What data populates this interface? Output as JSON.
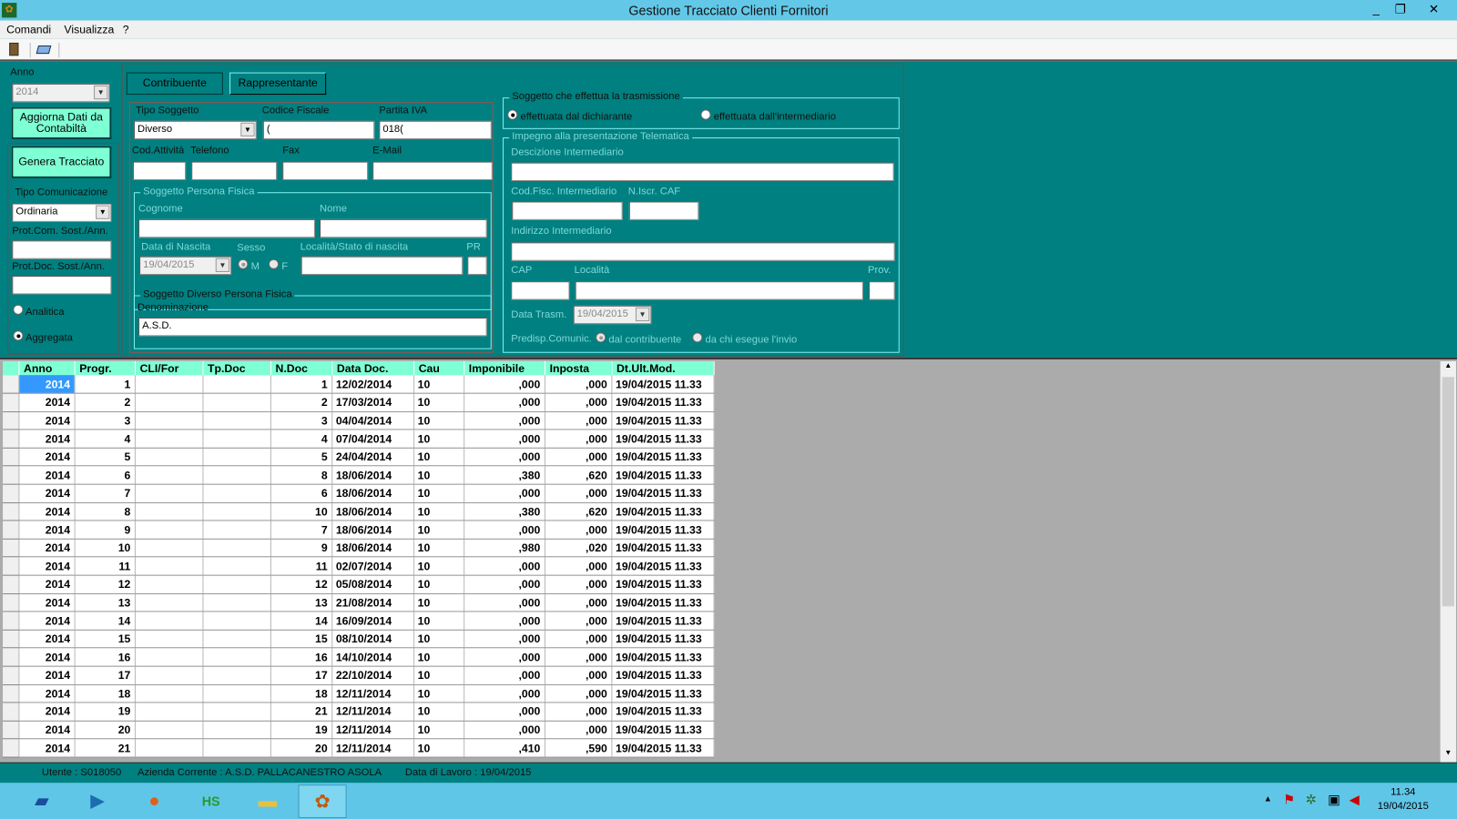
{
  "window": {
    "title": "Gestione Tracciato Clienti Fornitori",
    "minimize": "_",
    "restore": "❐",
    "close": "✕"
  },
  "menu": [
    "Comandi",
    "Visualizza",
    "?"
  ],
  "toolbar": {
    "icons": [
      "exit-door-icon",
      "print-preview-icon"
    ]
  },
  "left": {
    "anno_label": "Anno",
    "anno_value": "2014",
    "aggiorna_label": "Aggiorna Dati da Contabiltà",
    "genera_label": "Genera Tracciato",
    "tipo_com_label": "Tipo Comunicazione",
    "tipo_com_value": "Ordinaria",
    "prot_com_label": "Prot.Com. Sost./Ann.",
    "prot_doc_label": "Prot.Doc. Sost./Ann.",
    "analitica": "Analitica",
    "aggregata": "Aggregata",
    "selected": "Aggregata"
  },
  "tabs": [
    "Contribuente",
    "Rappresentante"
  ],
  "rapp": {
    "tipo_soggetto_label": "Tipo Soggetto",
    "tipo_soggetto_value": "Diverso",
    "cf_label": "Codice Fiscale",
    "cf_value": "(",
    "piva_label": "Partita IVA",
    "piva_value": "018(",
    "cod_att_label": "Cod.Attività",
    "tel_label": "Telefono",
    "fax_label": "Fax",
    "email_label": "E-Mail",
    "pf_group": "Soggetto Persona Fisica",
    "cognome_label": "Cognome",
    "nome_label": "Nome",
    "nascita_label": "Data di Nascita",
    "nascita_value": "19/04/2015",
    "sesso_label": "Sesso",
    "m": "M",
    "f": "F",
    "localita_label": "Località/Stato di nascita",
    "pr_label": "PR",
    "diverso_group": "Soggetto Diverso Persona Fisica",
    "denominazione_label": "Denominazione",
    "denominazione_value": "A.S.D."
  },
  "trasm": {
    "group": "Soggetto che effettua la trasmissione",
    "dich": "effettuata dal dichiarante",
    "interm": "effettuata dall'intermediario",
    "selected": "dich",
    "imp_group": "Impegno alla presentazione Telematica",
    "descr_label": "Descizione Intermediario",
    "cf_label": "Cod.Fisc. Intermediario",
    "caf_label": "N.Iscr. CAF",
    "ind_label": "Indirizzo Intermediario",
    "cap_label": "CAP",
    "loc_label": "Località",
    "prov_label": "Prov.",
    "data_label": "Data Trasm.",
    "data_value": "19/04/2015",
    "predisp_label": "Predisp.Comunic.",
    "dal_contr": "dal contribuente",
    "da_chi": "da chi esegue l'invio"
  },
  "grid": {
    "columns": [
      "Anno",
      "Progr.",
      "CLI/For",
      "Tp.Doc",
      "N.Doc",
      "Data Doc.",
      "Cau",
      "Imponibile",
      "Inposta",
      "Dt.Ult.Mod."
    ],
    "rows": [
      [
        "2014",
        "1",
        "",
        "",
        "1",
        "12/02/2014",
        "10",
        ",000",
        ",000",
        "19/04/2015 11.33"
      ],
      [
        "2014",
        "2",
        "",
        "",
        "2",
        "17/03/2014",
        "10",
        ",000",
        ",000",
        "19/04/2015 11.33"
      ],
      [
        "2014",
        "3",
        "",
        "",
        "3",
        "04/04/2014",
        "10",
        ",000",
        ",000",
        "19/04/2015 11.33"
      ],
      [
        "2014",
        "4",
        "",
        "",
        "4",
        "07/04/2014",
        "10",
        ",000",
        ",000",
        "19/04/2015 11.33"
      ],
      [
        "2014",
        "5",
        "",
        "",
        "5",
        "24/04/2014",
        "10",
        ",000",
        ",000",
        "19/04/2015 11.33"
      ],
      [
        "2014",
        "6",
        "",
        "",
        "8",
        "18/06/2014",
        "10",
        ",380",
        ",620",
        "19/04/2015 11.33"
      ],
      [
        "2014",
        "7",
        "",
        "",
        "6",
        "18/06/2014",
        "10",
        ",000",
        ",000",
        "19/04/2015 11.33"
      ],
      [
        "2014",
        "8",
        "",
        "",
        "10",
        "18/06/2014",
        "10",
        ",380",
        ",620",
        "19/04/2015 11.33"
      ],
      [
        "2014",
        "9",
        "",
        "",
        "7",
        "18/06/2014",
        "10",
        ",000",
        ",000",
        "19/04/2015 11.33"
      ],
      [
        "2014",
        "10",
        "",
        "",
        "9",
        "18/06/2014",
        "10",
        ",980",
        ",020",
        "19/04/2015 11.33"
      ],
      [
        "2014",
        "11",
        "",
        "",
        "11",
        "02/07/2014",
        "10",
        ",000",
        ",000",
        "19/04/2015 11.33"
      ],
      [
        "2014",
        "12",
        "",
        "",
        "12",
        "05/08/2014",
        "10",
        ",000",
        ",000",
        "19/04/2015 11.33"
      ],
      [
        "2014",
        "13",
        "",
        "",
        "13",
        "21/08/2014",
        "10",
        ",000",
        ",000",
        "19/04/2015 11.33"
      ],
      [
        "2014",
        "14",
        "",
        "",
        "14",
        "16/09/2014",
        "10",
        ",000",
        ",000",
        "19/04/2015 11.33"
      ],
      [
        "2014",
        "15",
        "",
        "",
        "15",
        "08/10/2014",
        "10",
        ",000",
        ",000",
        "19/04/2015 11.33"
      ],
      [
        "2014",
        "16",
        "",
        "",
        "16",
        "14/10/2014",
        "10",
        ",000",
        ",000",
        "19/04/2015 11.33"
      ],
      [
        "2014",
        "17",
        "",
        "",
        "17",
        "22/10/2014",
        "10",
        ",000",
        ",000",
        "19/04/2015 11.33"
      ],
      [
        "2014",
        "18",
        "",
        "",
        "18",
        "12/11/2014",
        "10",
        ",000",
        ",000",
        "19/04/2015 11.33"
      ],
      [
        "2014",
        "19",
        "",
        "",
        "21",
        "12/11/2014",
        "10",
        ",000",
        ",000",
        "19/04/2015 11.33"
      ],
      [
        "2014",
        "20",
        "",
        "",
        "19",
        "12/11/2014",
        "10",
        ",000",
        ",000",
        "19/04/2015 11.33"
      ],
      [
        "2014",
        "21",
        "",
        "",
        "20",
        "12/11/2014",
        "10",
        ",410",
        ",590",
        "19/04/2015 11.33"
      ]
    ]
  },
  "status": {
    "utente": "Utente : S018050",
    "azienda": "Azienda Corrente : A.S.D. PALLACANESTRO ASOLA",
    "data": "Data di Lavoro : 19/04/2015"
  },
  "taskbar": {
    "apps": [
      "powershell-icon",
      "media-player-icon",
      "firefox-icon",
      "hs-app-icon",
      "file-explorer-icon",
      "icaro-app-icon"
    ],
    "time": "11.34",
    "date": "19/04/2015"
  },
  "colors": {
    "teal": "#008080",
    "accent": "#7fffd4",
    "titlebar": "#63c8e8",
    "selection": "#3399ff"
  }
}
